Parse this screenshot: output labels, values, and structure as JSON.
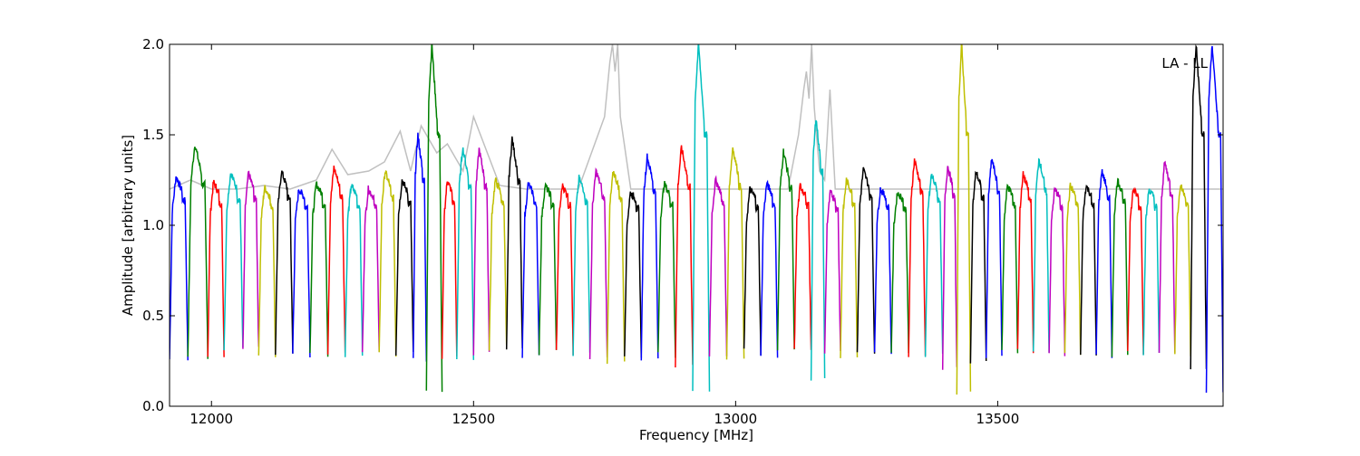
{
  "chart_data": {
    "type": "line",
    "title": "",
    "xlabel": "Frequency [MHz]",
    "ylabel": "Amplitude [arbitrary units]",
    "xlim": [
      11920,
      13930
    ],
    "ylim": [
      0.0,
      2.0
    ],
    "x_ticks": [
      12000,
      12500,
      13000,
      13500
    ],
    "y_ticks": [
      0.0,
      0.5,
      1.0,
      1.5,
      2.0
    ],
    "y_tick_labels": [
      "0.0",
      "0.5",
      "1.0",
      "1.5",
      "2.0"
    ],
    "annotation": "LA - LL",
    "legend": "none",
    "grid": false,
    "background_series": {
      "color": "#c0c0c0",
      "x": [
        11920,
        11960,
        12000,
        12050,
        12100,
        12150,
        12200,
        12230,
        12260,
        12300,
        12330,
        12360,
        12380,
        12400,
        12430,
        12450,
        12480,
        12500,
        12550,
        12600,
        12700,
        12750,
        12760,
        12765,
        12770,
        12775,
        12780,
        12800,
        12900,
        13000,
        13100,
        13120,
        13130,
        13135,
        13140,
        13145,
        13150,
        13160,
        13170,
        13180,
        13190,
        13200,
        13300,
        13400,
        13500,
        13600,
        13700,
        13800,
        13900,
        13930
      ],
      "y": [
        1.2,
        1.25,
        1.2,
        1.2,
        1.22,
        1.2,
        1.25,
        1.42,
        1.28,
        1.3,
        1.35,
        1.52,
        1.3,
        1.55,
        1.4,
        1.45,
        1.3,
        1.6,
        1.22,
        1.2,
        1.2,
        1.6,
        1.9,
        2.0,
        1.85,
        2.0,
        1.6,
        1.2,
        1.2,
        1.2,
        1.2,
        1.5,
        1.75,
        1.85,
        1.7,
        2.0,
        1.65,
        1.3,
        1.25,
        1.75,
        1.2,
        1.2,
        1.2,
        1.2,
        1.2,
        1.2,
        1.2,
        1.2,
        1.2,
        1.2
      ]
    },
    "segment_colors": [
      "#0000ff",
      "#008000",
      "#ff0000",
      "#00bfbf",
      "#bf00bf",
      "#bfbf00",
      "#000000"
    ],
    "series": [
      {
        "color": "#0000ff",
        "x_start": 11920,
        "x_end": 11955,
        "peak": 1.27,
        "min": 0.26
      },
      {
        "color": "#008000",
        "x_start": 11955,
        "x_end": 11993,
        "peak": 1.45,
        "min": 0.28
      },
      {
        "color": "#ff0000",
        "x_start": 11993,
        "x_end": 12024,
        "peak": 1.24,
        "min": 0.28
      },
      {
        "color": "#00bfbf",
        "x_start": 12024,
        "x_end": 12060,
        "peak": 1.29,
        "min": 0.31
      },
      {
        "color": "#bf00bf",
        "x_start": 12060,
        "x_end": 12090,
        "peak": 1.29,
        "min": 0.31
      },
      {
        "color": "#bfbf00",
        "x_start": 12090,
        "x_end": 12122,
        "peak": 1.21,
        "min": 0.28
      },
      {
        "color": "#000000",
        "x_start": 12122,
        "x_end": 12155,
        "peak": 1.3,
        "min": 0.29
      },
      {
        "color": "#0000ff",
        "x_start": 12155,
        "x_end": 12188,
        "peak": 1.2,
        "min": 0.29
      },
      {
        "color": "#008000",
        "x_start": 12188,
        "x_end": 12222,
        "peak": 1.23,
        "min": 0.29
      },
      {
        "color": "#ff0000",
        "x_start": 12222,
        "x_end": 12255,
        "peak": 1.32,
        "min": 0.3
      },
      {
        "color": "#00bfbf",
        "x_start": 12255,
        "x_end": 12288,
        "peak": 1.22,
        "min": 0.29
      },
      {
        "color": "#bf00bf",
        "x_start": 12288,
        "x_end": 12320,
        "peak": 1.2,
        "min": 0.29
      },
      {
        "color": "#bfbf00",
        "x_start": 12320,
        "x_end": 12352,
        "peak": 1.3,
        "min": 0.28
      },
      {
        "color": "#000000",
        "x_start": 12352,
        "x_end": 12385,
        "peak": 1.25,
        "min": 0.29
      },
      {
        "color": "#0000ff",
        "x_start": 12385,
        "x_end": 12410,
        "peak": 1.5,
        "min": 0.25
      },
      {
        "color": "#008000",
        "x_start": 12410,
        "x_end": 12440,
        "peak": 2.0,
        "min": 0.07
      },
      {
        "color": "#ff0000",
        "x_start": 12440,
        "x_end": 12468,
        "peak": 1.25,
        "min": 0.27
      },
      {
        "color": "#00bfbf",
        "x_start": 12468,
        "x_end": 12500,
        "peak": 1.43,
        "min": 0.27
      },
      {
        "color": "#bf00bf",
        "x_start": 12500,
        "x_end": 12530,
        "peak": 1.42,
        "min": 0.3
      },
      {
        "color": "#bfbf00",
        "x_start": 12530,
        "x_end": 12563,
        "peak": 1.25,
        "min": 0.32
      },
      {
        "color": "#000000",
        "x_start": 12563,
        "x_end": 12593,
        "peak": 1.48,
        "min": 0.3
      },
      {
        "color": "#0000ff",
        "x_start": 12593,
        "x_end": 12625,
        "peak": 1.23,
        "min": 0.27
      },
      {
        "color": "#008000",
        "x_start": 12625,
        "x_end": 12658,
        "peak": 1.22,
        "min": 0.3
      },
      {
        "color": "#ff0000",
        "x_start": 12658,
        "x_end": 12690,
        "peak": 1.22,
        "min": 0.3
      },
      {
        "color": "#00bfbf",
        "x_start": 12690,
        "x_end": 12722,
        "peak": 1.26,
        "min": 0.29
      },
      {
        "color": "#bf00bf",
        "x_start": 12722,
        "x_end": 12755,
        "peak": 1.3,
        "min": 0.28
      },
      {
        "color": "#bfbf00",
        "x_start": 12755,
        "x_end": 12788,
        "peak": 1.3,
        "min": 0.25
      },
      {
        "color": "#000000",
        "x_start": 12788,
        "x_end": 12820,
        "peak": 1.18,
        "min": 0.28
      },
      {
        "color": "#0000ff",
        "x_start": 12820,
        "x_end": 12852,
        "peak": 1.38,
        "min": 0.27
      },
      {
        "color": "#008000",
        "x_start": 12852,
        "x_end": 12885,
        "peak": 1.23,
        "min": 0.28
      },
      {
        "color": "#ff0000",
        "x_start": 12885,
        "x_end": 12918,
        "peak": 1.43,
        "min": 0.23
      },
      {
        "color": "#00bfbf",
        "x_start": 12918,
        "x_end": 12950,
        "peak": 2.0,
        "min": 0.09
      },
      {
        "color": "#bf00bf",
        "x_start": 12950,
        "x_end": 12983,
        "peak": 1.25,
        "min": 0.28
      },
      {
        "color": "#bfbf00",
        "x_start": 12983,
        "x_end": 13016,
        "peak": 1.43,
        "min": 0.26
      },
      {
        "color": "#000000",
        "x_start": 13016,
        "x_end": 13048,
        "peak": 1.2,
        "min": 0.3
      },
      {
        "color": "#0000ff",
        "x_start": 13048,
        "x_end": 13080,
        "peak": 1.23,
        "min": 0.28
      },
      {
        "color": "#008000",
        "x_start": 13080,
        "x_end": 13112,
        "peak": 1.41,
        "min": 0.31
      },
      {
        "color": "#ff0000",
        "x_start": 13112,
        "x_end": 13144,
        "peak": 1.22,
        "min": 0.3
      },
      {
        "color": "#00bfbf",
        "x_start": 13144,
        "x_end": 13170,
        "peak": 1.6,
        "min": 0.15
      },
      {
        "color": "#bf00bf",
        "x_start": 13170,
        "x_end": 13200,
        "peak": 1.18,
        "min": 0.3
      },
      {
        "color": "#bfbf00",
        "x_start": 13200,
        "x_end": 13232,
        "peak": 1.25,
        "min": 0.27
      },
      {
        "color": "#000000",
        "x_start": 13232,
        "x_end": 13265,
        "peak": 1.31,
        "min": 0.28
      },
      {
        "color": "#0000ff",
        "x_start": 13265,
        "x_end": 13297,
        "peak": 1.2,
        "min": 0.28
      },
      {
        "color": "#008000",
        "x_start": 13297,
        "x_end": 13330,
        "peak": 1.18,
        "min": 0.3
      },
      {
        "color": "#ff0000",
        "x_start": 13330,
        "x_end": 13362,
        "peak": 1.36,
        "min": 0.27
      },
      {
        "color": "#00bfbf",
        "x_start": 13362,
        "x_end": 13395,
        "peak": 1.28,
        "min": 0.27
      },
      {
        "color": "#bf00bf",
        "x_start": 13395,
        "x_end": 13422,
        "peak": 1.33,
        "min": 0.22
      },
      {
        "color": "#bfbf00",
        "x_start": 13422,
        "x_end": 13448,
        "peak": 2.0,
        "min": 0.08
      },
      {
        "color": "#000000",
        "x_start": 13448,
        "x_end": 13478,
        "peak": 1.3,
        "min": 0.25
      },
      {
        "color": "#0000ff",
        "x_start": 13478,
        "x_end": 13508,
        "peak": 1.37,
        "min": 0.27
      },
      {
        "color": "#008000",
        "x_start": 13508,
        "x_end": 13538,
        "peak": 1.22,
        "min": 0.3
      },
      {
        "color": "#ff0000",
        "x_start": 13538,
        "x_end": 13568,
        "peak": 1.28,
        "min": 0.3
      },
      {
        "color": "#00bfbf",
        "x_start": 13568,
        "x_end": 13598,
        "peak": 1.37,
        "min": 0.3
      },
      {
        "color": "#bf00bf",
        "x_start": 13598,
        "x_end": 13628,
        "peak": 1.2,
        "min": 0.29
      },
      {
        "color": "#bfbf00",
        "x_start": 13628,
        "x_end": 13658,
        "peak": 1.22,
        "min": 0.28
      },
      {
        "color": "#000000",
        "x_start": 13658,
        "x_end": 13688,
        "peak": 1.22,
        "min": 0.28
      },
      {
        "color": "#0000ff",
        "x_start": 13688,
        "x_end": 13718,
        "peak": 1.3,
        "min": 0.28
      },
      {
        "color": "#008000",
        "x_start": 13718,
        "x_end": 13748,
        "peak": 1.25,
        "min": 0.29
      },
      {
        "color": "#ff0000",
        "x_start": 13748,
        "x_end": 13778,
        "peak": 1.2,
        "min": 0.3
      },
      {
        "color": "#00bfbf",
        "x_start": 13778,
        "x_end": 13808,
        "peak": 1.2,
        "min": 0.3
      },
      {
        "color": "#bf00bf",
        "x_start": 13808,
        "x_end": 13838,
        "peak": 1.35,
        "min": 0.29
      },
      {
        "color": "#bfbf00",
        "x_start": 13838,
        "x_end": 13868,
        "peak": 1.22,
        "min": 0.28
      },
      {
        "color": "#000000",
        "x_start": 13868,
        "x_end": 13898,
        "peak": 2.0,
        "min": 0.19
      },
      {
        "color": "#0000ff",
        "x_start": 13898,
        "x_end": 13930,
        "peak": 2.0,
        "min": 0.07
      }
    ]
  }
}
